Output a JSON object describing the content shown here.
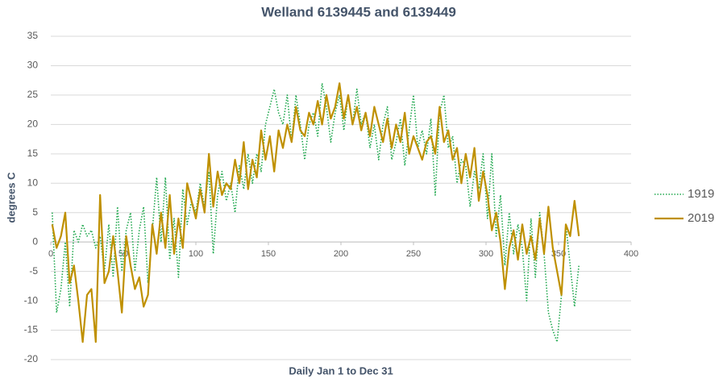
{
  "chart_data": {
    "type": "line",
    "title": "Welland 6139445 and 6139449",
    "x_label": "Daily Jan 1 to Dec 31",
    "y_label": "degrees C",
    "x": [
      1,
      4,
      7,
      10,
      13,
      16,
      19,
      22,
      25,
      28,
      31,
      34,
      37,
      40,
      43,
      46,
      49,
      52,
      55,
      58,
      61,
      64,
      67,
      70,
      73,
      76,
      79,
      82,
      85,
      88,
      91,
      94,
      97,
      100,
      103,
      106,
      109,
      112,
      115,
      118,
      121,
      124,
      127,
      130,
      133,
      136,
      139,
      142,
      145,
      148,
      151,
      154,
      157,
      160,
      163,
      166,
      169,
      172,
      175,
      178,
      181,
      184,
      187,
      190,
      193,
      196,
      199,
      202,
      205,
      208,
      211,
      214,
      217,
      220,
      223,
      226,
      229,
      232,
      235,
      238,
      241,
      244,
      247,
      250,
      253,
      256,
      259,
      262,
      265,
      268,
      271,
      274,
      277,
      280,
      283,
      286,
      289,
      292,
      295,
      298,
      301,
      304,
      307,
      310,
      313,
      316,
      319,
      322,
      325,
      328,
      331,
      334,
      337,
      340,
      343,
      346,
      349,
      352,
      355,
      358,
      361,
      364
    ],
    "series": [
      {
        "name": "1919",
        "color": "#21a84f",
        "line_style": "dotted",
        "values": [
          5,
          -12,
          -8,
          0,
          -11,
          2,
          0,
          3,
          1,
          2,
          -1,
          1,
          -5,
          3,
          -6,
          6,
          -5,
          2,
          5,
          -5,
          2,
          6,
          -7,
          2,
          11,
          0,
          11,
          -3,
          4,
          -6,
          9,
          3,
          7,
          5,
          10,
          6,
          12,
          -2,
          8,
          12,
          7,
          10,
          5,
          13,
          9,
          15,
          10,
          15,
          12,
          20,
          23,
          26,
          22,
          20,
          25,
          17,
          25,
          20,
          14,
          20,
          22,
          18,
          27,
          23,
          17,
          22,
          25,
          19,
          25,
          20,
          26,
          20,
          22,
          16,
          20,
          14,
          20,
          23,
          14,
          17,
          21,
          13,
          19,
          25,
          16,
          19,
          15,
          21,
          8,
          22,
          25,
          16,
          18,
          10,
          14,
          13,
          6,
          12,
          9,
          15,
          4,
          15,
          1,
          8,
          -4,
          5,
          -2,
          3,
          -1,
          -10,
          4,
          -6,
          5,
          -2,
          -12,
          -15,
          -17,
          -9,
          3,
          -4,
          -11,
          -4
        ]
      },
      {
        "name": "2019",
        "color": "#bf9000",
        "line_style": "solid",
        "values": [
          3,
          -1,
          1,
          5,
          -7,
          -4,
          -10,
          -17,
          -9,
          -8,
          -17,
          8,
          -7,
          -5,
          1,
          -5,
          -12,
          1,
          -4,
          -8,
          -6,
          -11,
          -9,
          3,
          -2,
          5,
          -1,
          8,
          -2,
          4,
          -1,
          10,
          7,
          4,
          9,
          5,
          15,
          6,
          12,
          8,
          10,
          9,
          14,
          10,
          17,
          9,
          14,
          11,
          19,
          14,
          18,
          12,
          19,
          16,
          20,
          17,
          23,
          19,
          18,
          22,
          20,
          24,
          20,
          25,
          21,
          23,
          27,
          21,
          25,
          20,
          23,
          19,
          22,
          18,
          23,
          20,
          17,
          21,
          16,
          20,
          17,
          22,
          15,
          18,
          16,
          14,
          17,
          18,
          15,
          23,
          17,
          19,
          14,
          16,
          10,
          15,
          11,
          16,
          7,
          12,
          8,
          2,
          5,
          0,
          -8,
          -1,
          2,
          -3,
          3,
          -2,
          1,
          -3,
          4,
          -2,
          6,
          -1,
          -5,
          -9,
          3,
          1,
          7,
          1
        ]
      }
    ],
    "xlim": [
      0,
      400
    ],
    "xticks": [
      0,
      50,
      100,
      150,
      200,
      250,
      300,
      350,
      400
    ],
    "ylim": [
      -20,
      35
    ],
    "yticks": [
      -20,
      -15,
      -10,
      -5,
      0,
      5,
      10,
      15,
      20,
      25,
      30,
      35
    ],
    "grid": true,
    "legend": "right"
  }
}
